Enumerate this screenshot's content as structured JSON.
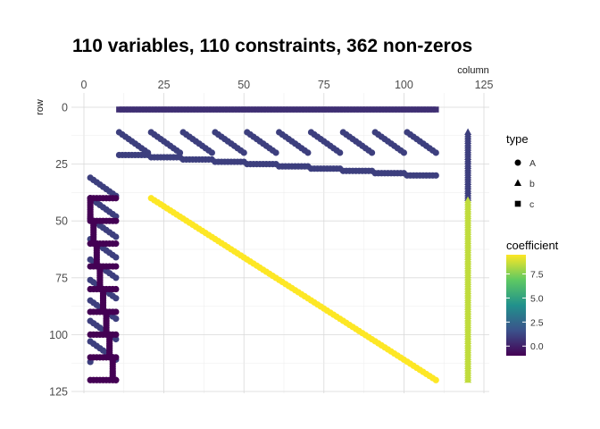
{
  "chart_data": {
    "type": "scatter",
    "title": "110 variables, 110 constraints, 362 non-zeros",
    "xlabel": "column",
    "ylabel": "row",
    "xlim": [
      -3,
      126
    ],
    "ylim": [
      0,
      126
    ],
    "y_reversed": true,
    "x_axis_position": "top",
    "x_ticks": [
      0,
      25,
      50,
      75,
      100,
      125
    ],
    "y_ticks": [
      0,
      25,
      50,
      75,
      100,
      125
    ],
    "grid": true,
    "theme": "minimal",
    "palette": "viridis",
    "legend_placement": "right",
    "shape_legend": {
      "title": "type",
      "items": [
        {
          "label": "A",
          "shape": "circle"
        },
        {
          "label": "b",
          "shape": "triangle"
        },
        {
          "label": "c",
          "shape": "square"
        }
      ]
    },
    "color_legend": {
      "title": "coefficient",
      "min": -1,
      "max": 9.5,
      "ticks": [
        0,
        2.5,
        5,
        7.5
      ],
      "tick_labels": [
        "0.0",
        "2.5",
        "5.0",
        "7.5"
      ]
    },
    "series": [
      {
        "type": "c",
        "desc_of": "objective row",
        "x_range": [
          11,
          110
        ],
        "y": 1,
        "coefficient": 0.5
      },
      {
        "type": "A",
        "blocks": [
          [
            11,
            10
          ],
          [
            21,
            10
          ],
          [
            31,
            10
          ],
          [
            41,
            10
          ],
          [
            51,
            10
          ],
          [
            61,
            10
          ],
          [
            71,
            10
          ],
          [
            81,
            10
          ],
          [
            91,
            10
          ],
          [
            101,
            10
          ]
        ],
        "row_start": 11,
        "coefficient": 1
      },
      {
        "type": "A",
        "step_rows": [
          21,
          22,
          23,
          24,
          25,
          26,
          27,
          28,
          29,
          30
        ],
        "step_x_start": 11,
        "step_len": 10,
        "coefficient": 1
      },
      {
        "type": "A",
        "blocks": [
          [
            2,
            9
          ],
          [
            2,
            9
          ],
          [
            2,
            9
          ],
          [
            2,
            9
          ],
          [
            2,
            9
          ],
          [
            2,
            9
          ],
          [
            2,
            9
          ],
          [
            2,
            9
          ],
          [
            2,
            9
          ]
        ],
        "row_start": 31,
        "coefficient": 1
      },
      {
        "type": "A",
        "steps_from_row": 40,
        "steps_to_row": 120,
        "x_start": 2,
        "x_end": 10,
        "coefficient": -1
      },
      {
        "type": "A",
        "x_range": [
          21,
          110
        ],
        "y_range": [
          40,
          120
        ],
        "coefficient": 9.5
      },
      {
        "type": "b",
        "x": 120,
        "y_range": [
          11,
          120
        ],
        "coefficient_first_30": 1,
        "coefficient_rest": 8.5
      }
    ]
  }
}
